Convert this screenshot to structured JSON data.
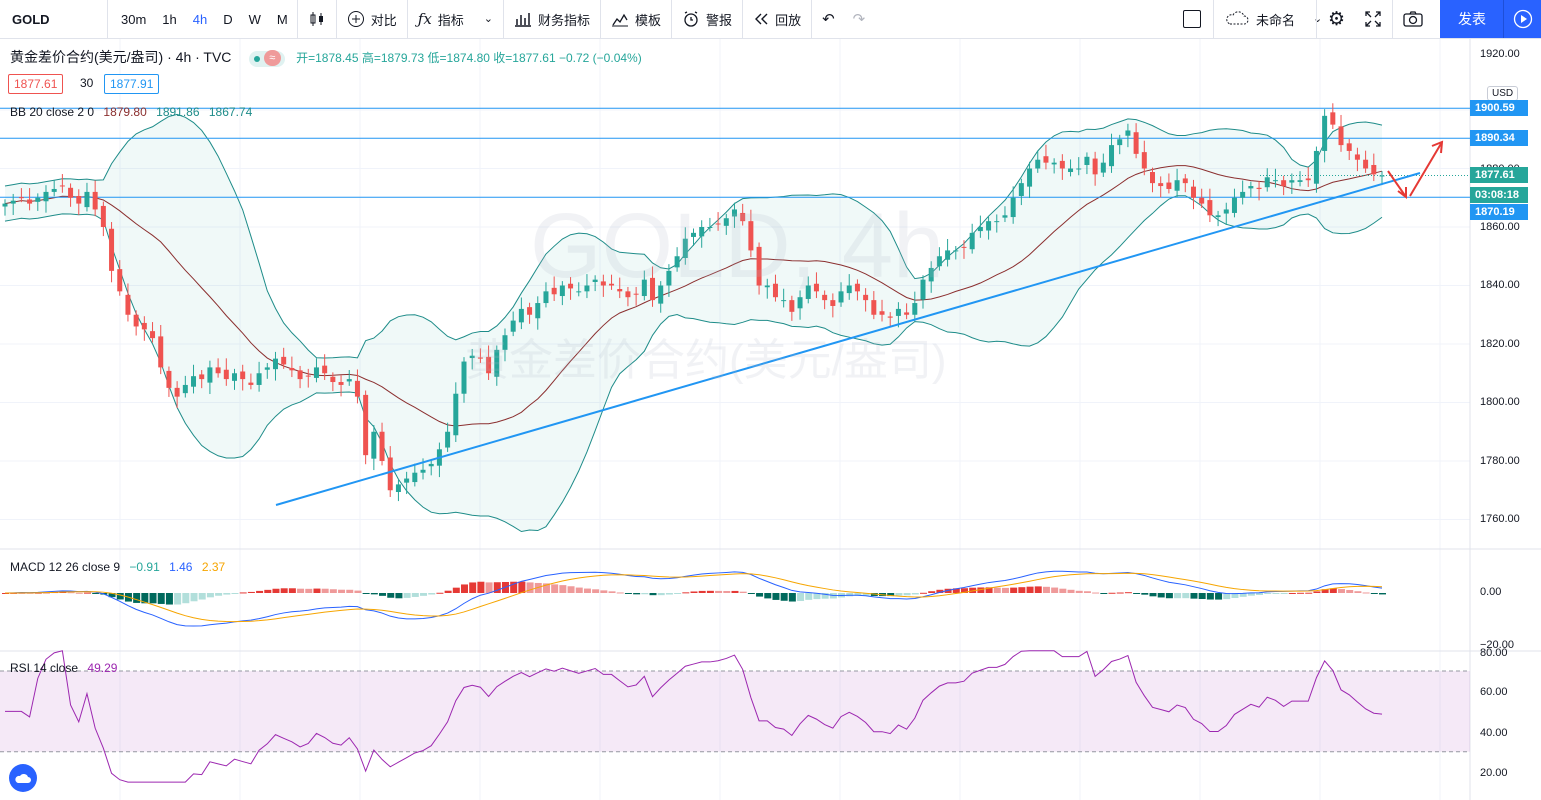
{
  "toolbar": {
    "symbol": "GOLD",
    "intervals": [
      "30m",
      "1h",
      "4h",
      "D",
      "W",
      "M"
    ],
    "active_interval": "4h",
    "compare": "对比",
    "indicators": "指标",
    "financials": "财务指标",
    "templates": "模板",
    "alert": "警报",
    "replay": "回放",
    "layout_name": "未命名",
    "publish": "发表"
  },
  "legend": {
    "title": "黄金差价合约(美元/盎司) · 4h · TVC",
    "ohlc": "开=1878.45 高=1879.73 低=1874.80 收=1877.61 −0.72 (−0.04%)",
    "bid": "1877.61",
    "spread": "30",
    "ask": "1877.91",
    "bb_label": "BB 20 close 2 0",
    "bb_basis": "1879.80",
    "bb_upper": "1891.86",
    "bb_lower": "1867.74",
    "macd_label": "MACD 12 26 close 9",
    "macd_hist": "−0.91",
    "macd_macd": "1.46",
    "macd_signal": "2.37",
    "rsi_label": "RSI 14 close",
    "rsi_value": "49.29"
  },
  "watermark": {
    "symbol": "GOLD, 4h",
    "description": "黄金差价合约(美元/盎司)"
  },
  "price_axis": {
    "currency": "USD",
    "ticks": [
      "1900.00",
      "1880.00",
      "1860.00",
      "1840.00",
      "1820.00",
      "1800.00",
      "1780.00",
      "1760.00"
    ],
    "top_tick": "1920.00"
  },
  "price_tags": {
    "upper": "1900.59",
    "mid": "1890.34",
    "last": "1877.61",
    "countdown": "03:08:18",
    "lower": "1870.19"
  },
  "macd_axis": {
    "ticks": [
      "0.00",
      "−20.00"
    ]
  },
  "rsi_axis": {
    "ticks": [
      "80.00",
      "60.00",
      "40.00",
      "20.00"
    ]
  },
  "colors": {
    "up": "#26a69a",
    "down": "#ef5350",
    "line": "#2196f3",
    "bb": "#1e8c89",
    "basis": "#8b2f2f",
    "rsi": "#9c27b0"
  },
  "chart_data": {
    "type": "candlestick",
    "symbol": "GOLD",
    "interval": "4h",
    "price_range": [
      1756,
      1922
    ],
    "horizontal_levels": [
      1900.59,
      1890.34,
      1870.19
    ],
    "closes": [
      1868,
      1869,
      1870,
      1868,
      1870,
      1872,
      1873,
      1874,
      1870,
      1868,
      1872,
      1866,
      1860,
      1845,
      1838,
      1830,
      1826,
      1825,
      1822,
      1812,
      1805,
      1802,
      1806,
      1809,
      1808,
      1812,
      1810,
      1808,
      1810,
      1808,
      1806,
      1810,
      1812,
      1815,
      1813,
      1811,
      1808,
      1809,
      1812,
      1810,
      1807,
      1806,
      1808,
      1802,
      1782,
      1790,
      1780,
      1770,
      1772,
      1774,
      1776,
      1777,
      1779,
      1784,
      1790,
      1803,
      1814,
      1816,
      1815,
      1810,
      1818,
      1823,
      1828,
      1832,
      1830,
      1834,
      1838,
      1837,
      1840,
      1839,
      1838,
      1840,
      1842,
      1840,
      1840,
      1838,
      1836,
      1837,
      1842,
      1835,
      1840,
      1845,
      1850,
      1856,
      1858,
      1860,
      1860,
      1861,
      1863,
      1866,
      1862,
      1852,
      1840,
      1840,
      1836,
      1835,
      1831,
      1836,
      1840,
      1838,
      1835,
      1833,
      1838,
      1840,
      1838,
      1835,
      1830,
      1830,
      1829,
      1832,
      1830,
      1834,
      1842,
      1846,
      1850,
      1852,
      1852,
      1853,
      1858,
      1860,
      1862,
      1862,
      1864,
      1870,
      1875,
      1880,
      1883,
      1882,
      1882,
      1880,
      1880,
      1880,
      1884,
      1878,
      1882,
      1888,
      1890,
      1893,
      1885,
      1880,
      1875,
      1874,
      1873,
      1876,
      1875,
      1870,
      1868,
      1864,
      1864,
      1866,
      1870,
      1872,
      1874,
      1873,
      1877,
      1876,
      1874,
      1876,
      1876,
      1876,
      1886,
      1898,
      1895,
      1888,
      1886,
      1883,
      1880,
      1878,
      1877.61
    ]
  }
}
